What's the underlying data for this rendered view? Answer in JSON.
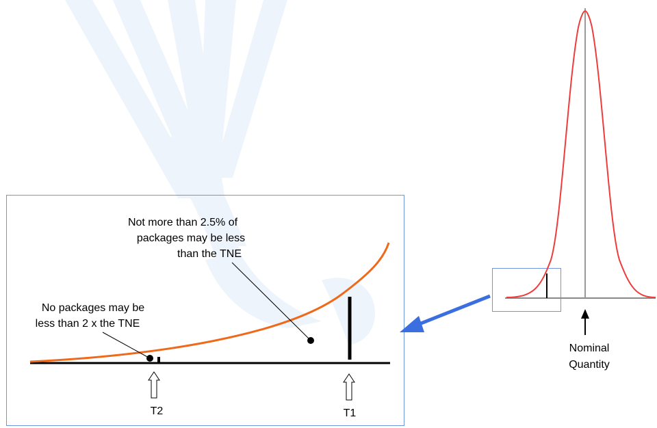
{
  "annotations": {
    "tne_note_lines": [
      "Not more than 2.5% of",
      "packages may be less",
      "than the TNE"
    ],
    "two_tne_note_lines": [
      "No packages may be",
      "less than 2 x the TNE"
    ],
    "t2_label": "T2",
    "t1_label": "T1",
    "nominal_lines": [
      "Nominal",
      "Quantity"
    ]
  },
  "colors": {
    "watermark": "#eef4fc",
    "zoom_box": "#6f94e0",
    "arrow": "#3b6fe0",
    "orange_curve": "#ee6a1a",
    "red_curve": "#ee3b3b",
    "axis": "#000000",
    "grey_axis": "#888888"
  }
}
